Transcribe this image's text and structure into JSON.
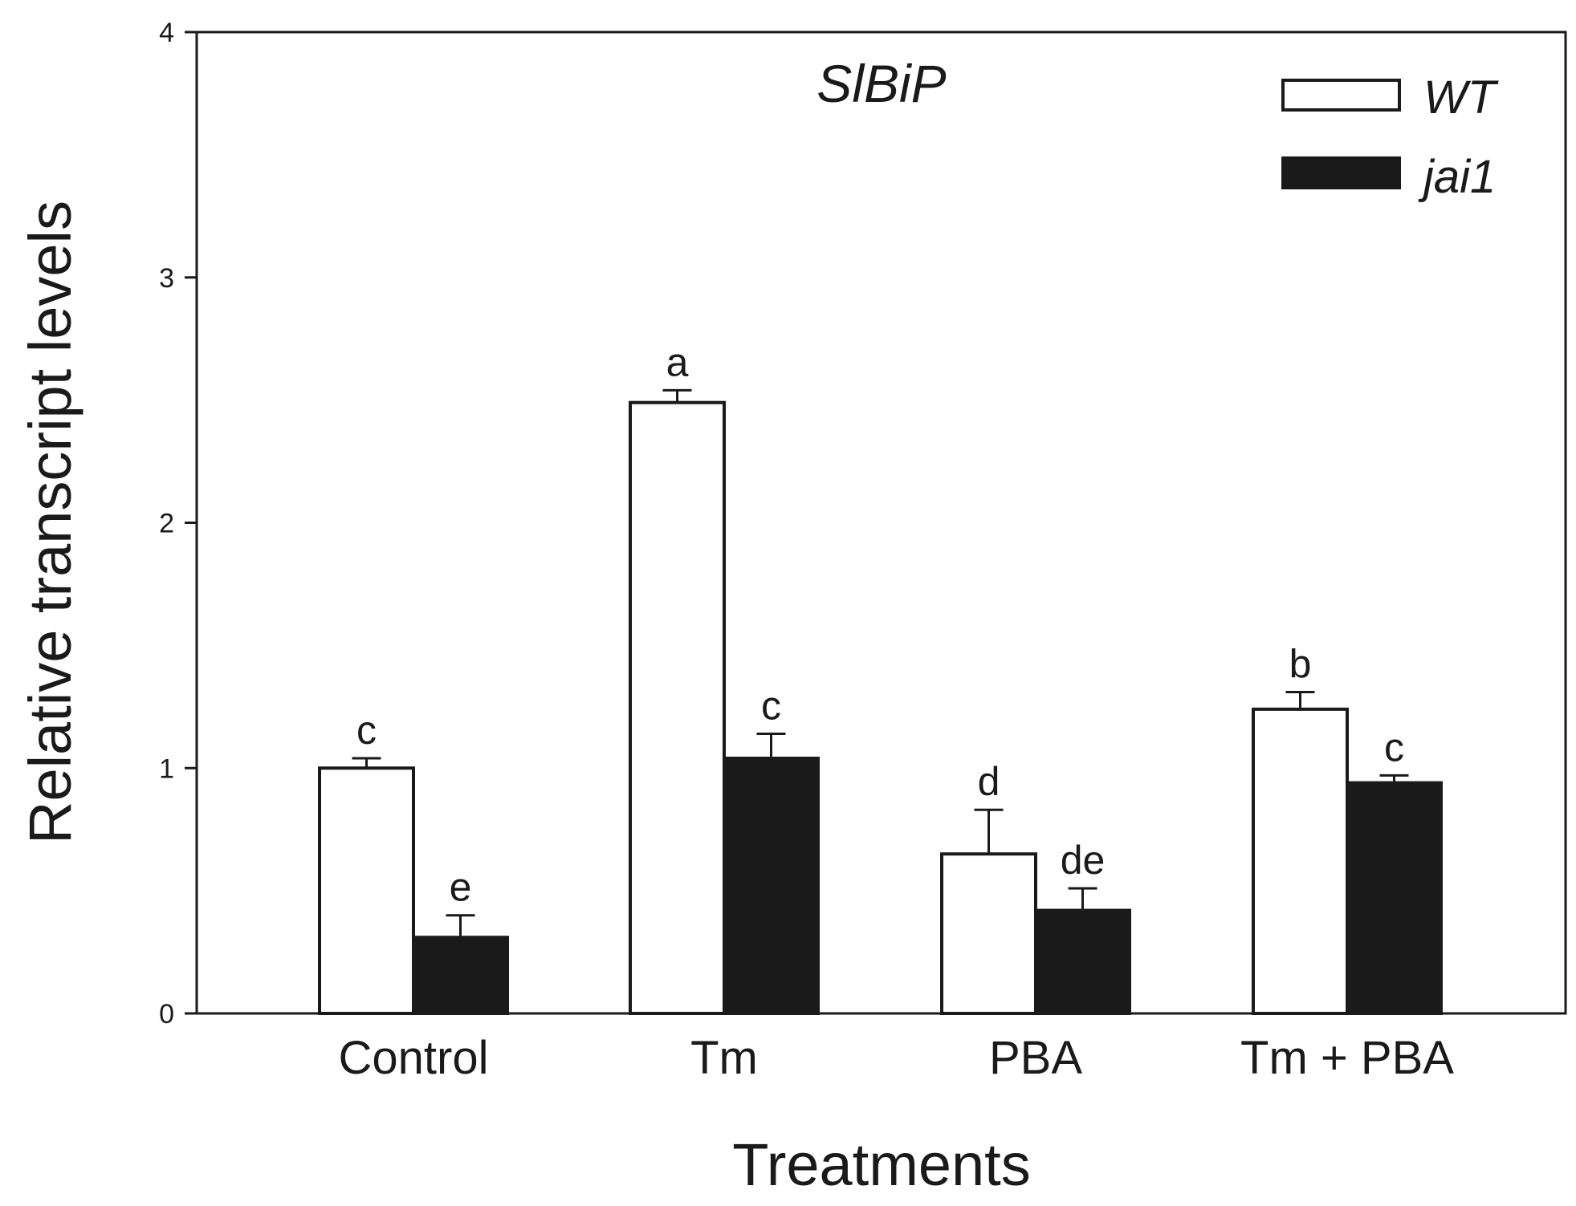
{
  "chart_data": {
    "type": "bar",
    "title": "SlBiP",
    "xlabel": "Treatments",
    "ylabel": "Relative transcript levels",
    "ylim": [
      0,
      4
    ],
    "yticks": [
      "0",
      "1",
      "2",
      "3",
      "4"
    ],
    "categories": [
      "Control",
      "Tm",
      "PBA",
      "Tm + PBA"
    ],
    "legend_position": "top-right",
    "series": [
      {
        "name": "WT",
        "fill": "#ffffff",
        "values": [
          1.0,
          2.49,
          0.65,
          1.24
        ],
        "errors": [
          0.04,
          0.05,
          0.18,
          0.07
        ],
        "letters": [
          "c",
          "a",
          "d",
          "b"
        ]
      },
      {
        "name": "jai1",
        "fill": "#1a1a1a",
        "values": [
          0.31,
          1.04,
          0.42,
          0.94
        ],
        "errors": [
          0.09,
          0.1,
          0.09,
          0.03
        ],
        "letters": [
          "e",
          "c",
          "de",
          "c"
        ]
      }
    ]
  }
}
